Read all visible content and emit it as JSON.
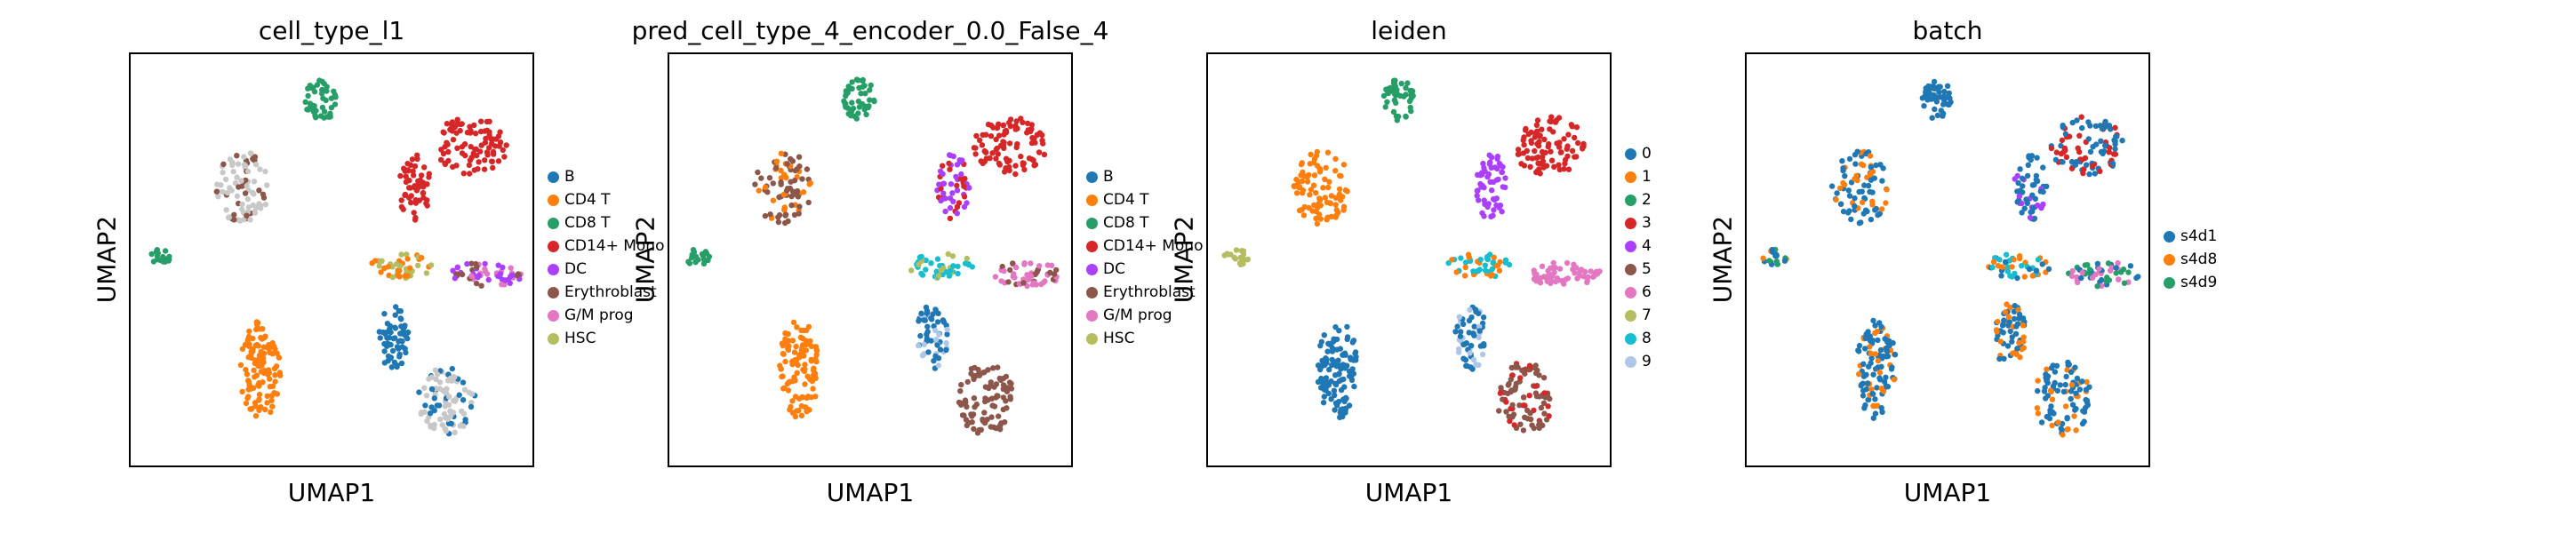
{
  "chart_data": [
    {
      "type": "scatter",
      "title": "cell_type_l1",
      "xlabel": "UMAP1",
      "ylabel": "UMAP2",
      "legend_position": "right",
      "legend": [
        {
          "label": "B",
          "color": "#1f77b4"
        },
        {
          "label": "CD4 T",
          "color": "#ff7f0e"
        },
        {
          "label": "CD8 T",
          "color": "#279e68"
        },
        {
          "label": "CD14+ Mono",
          "color": "#d62728"
        },
        {
          "label": "DC",
          "color": "#aa40fc"
        },
        {
          "label": "Erythroblast",
          "color": "#8c564b"
        },
        {
          "label": "G/M prog",
          "color": "#e377c2"
        },
        {
          "label": "HSC",
          "color": "#b5bd61"
        }
      ]
    },
    {
      "type": "scatter",
      "title": "pred_cell_type_4_encoder_0.0_False_4",
      "xlabel": "UMAP1",
      "ylabel": "UMAP2",
      "legend_position": "right",
      "legend": [
        {
          "label": "B",
          "color": "#1f77b4"
        },
        {
          "label": "CD4 T",
          "color": "#ff7f0e"
        },
        {
          "label": "CD8 T",
          "color": "#279e68"
        },
        {
          "label": "CD14+ Mono",
          "color": "#d62728"
        },
        {
          "label": "DC",
          "color": "#aa40fc"
        },
        {
          "label": "Erythroblast",
          "color": "#8c564b"
        },
        {
          "label": "G/M prog",
          "color": "#e377c2"
        },
        {
          "label": "HSC",
          "color": "#b5bd61"
        }
      ]
    },
    {
      "type": "scatter",
      "title": "leiden",
      "xlabel": "UMAP1",
      "ylabel": "UMAP2",
      "legend_position": "right",
      "legend": [
        {
          "label": "0",
          "color": "#1f77b4"
        },
        {
          "label": "1",
          "color": "#ff7f0e"
        },
        {
          "label": "2",
          "color": "#279e68"
        },
        {
          "label": "3",
          "color": "#d62728"
        },
        {
          "label": "4",
          "color": "#aa40fc"
        },
        {
          "label": "5",
          "color": "#8c564b"
        },
        {
          "label": "6",
          "color": "#e377c2"
        },
        {
          "label": "7",
          "color": "#b5bd61"
        },
        {
          "label": "8",
          "color": "#17becf"
        },
        {
          "label": "9",
          "color": "#aec7e8"
        }
      ]
    },
    {
      "type": "scatter",
      "title": "batch",
      "xlabel": "UMAP1",
      "ylabel": "UMAP2",
      "legend_position": "right",
      "legend": [
        {
          "label": "s4d1",
          "color": "#1f77b4"
        },
        {
          "label": "s4d8",
          "color": "#ff7f0e"
        },
        {
          "label": "s4d9",
          "color": "#279e68"
        }
      ]
    }
  ]
}
